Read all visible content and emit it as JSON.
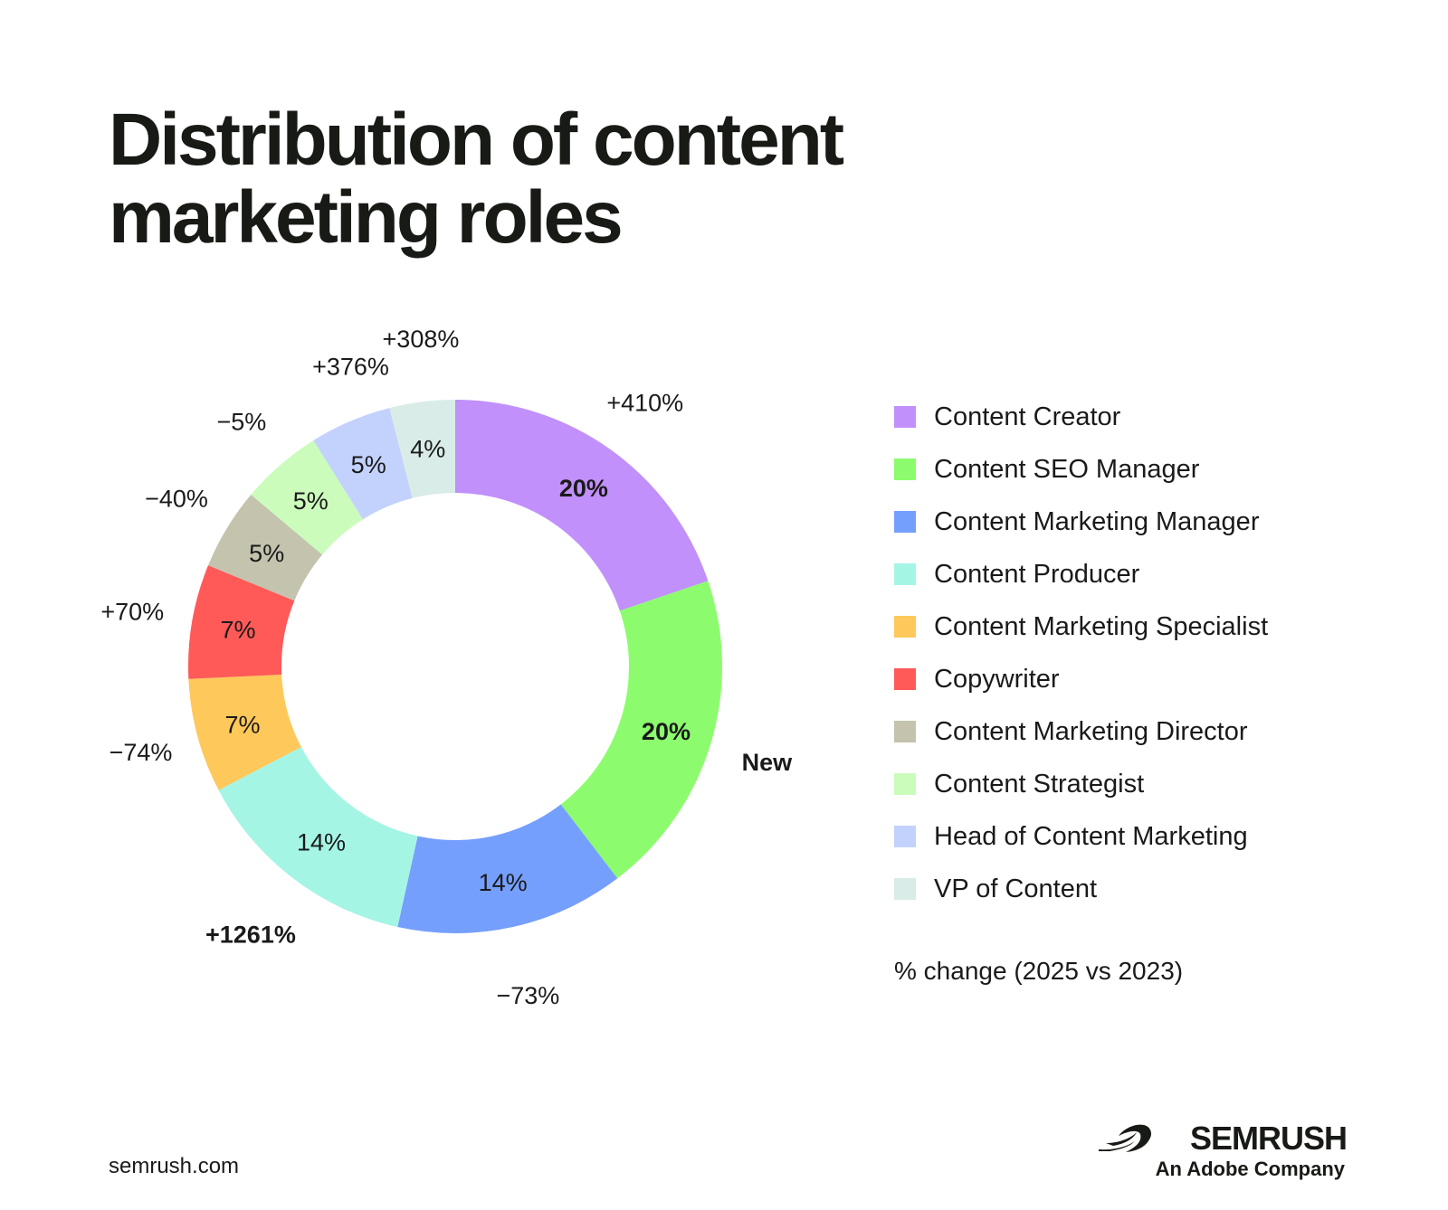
{
  "title_line1": "Distribution of content",
  "title_line2": "marketing roles",
  "chart_data": {
    "type": "pie",
    "variant": "donut",
    "title": "Distribution of content marketing roles",
    "legend_position": "right",
    "slices": [
      {
        "name": "Content Creator",
        "value": 20,
        "label": "20%",
        "change": "+410%",
        "color": "#c190fb"
      },
      {
        "name": "Content SEO Manager",
        "value": 20,
        "label": "20%",
        "change": "New",
        "color": "#8cfc6e"
      },
      {
        "name": "Content Marketing Manager",
        "value": 14,
        "label": "14%",
        "change": "−73%",
        "color": "#759ffc"
      },
      {
        "name": "Content Producer",
        "value": 14,
        "label": "14%",
        "change": "+1261%",
        "color": "#a5f5e5"
      },
      {
        "name": "Content Marketing Specialist",
        "value": 7,
        "label": "7%",
        "change": "−74%",
        "color": "#ffc85a"
      },
      {
        "name": "Copywriter",
        "value": 7,
        "label": "7%",
        "change": "+70%",
        "color": "#ff5a58"
      },
      {
        "name": "Content Marketing Director",
        "value": 5,
        "label": "5%",
        "change": "−40%",
        "color": "#c3c3ae"
      },
      {
        "name": "Content Strategist",
        "value": 5,
        "label": "5%",
        "change": "−5%",
        "color": "#cbfcbc"
      },
      {
        "name": "Head of Content Marketing",
        "value": 5,
        "label": "5%",
        "change": "+376%",
        "color": "#c3d2fc"
      },
      {
        "name": "VP of Content",
        "value": 4,
        "label": "4%",
        "change": "+308%",
        "color": "#d9ece8"
      }
    ],
    "legend_note": "% change (2025 vs 2023)"
  },
  "footer": {
    "url": "semrush.com",
    "brand_name": "SEMRUSH",
    "brand_tagline": "An Adobe Company"
  }
}
